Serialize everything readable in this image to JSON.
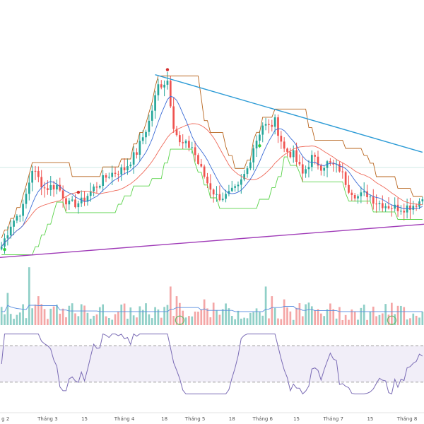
{
  "chart_data": {
    "type": "candlestick",
    "colors": {
      "up": "#26a69a",
      "down": "#ef5350",
      "vol_up": "#8fcfc7",
      "vol_down": "#f4a6a6",
      "ma_fast": "#3a6bd6",
      "ma_slow": "#ef6a5a",
      "trail_upper": "#b8651e",
      "trail_lower": "#5ad34a",
      "trend_upper": "#2c9bd6",
      "trend_lower": "#a03cb8",
      "rsi": "#7a6bb5",
      "rsi_band": "#f1eef8",
      "vol_ma": "#5b8fe0",
      "marker_circle": "#66bb6a"
    },
    "x_ticks": [
      {
        "i": 0,
        "label": "g 2"
      },
      {
        "i": 15,
        "label": "Tháng 3"
      },
      {
        "i": 27,
        "label": "15"
      },
      {
        "i": 40,
        "label": "Tháng 4"
      },
      {
        "i": 53,
        "label": "18"
      },
      {
        "i": 63,
        "label": "Tháng 5"
      },
      {
        "i": 75,
        "label": "18"
      },
      {
        "i": 85,
        "label": "Tháng 6"
      },
      {
        "i": 96,
        "label": "15"
      },
      {
        "i": 108,
        "label": "Tháng 7"
      },
      {
        "i": 120,
        "label": "15"
      },
      {
        "i": 132,
        "label": "Tháng 8"
      }
    ],
    "anchors": [
      [
        0,
        12
      ],
      [
        3,
        20
      ],
      [
        7,
        26
      ],
      [
        10,
        40
      ],
      [
        14,
        33
      ],
      [
        18,
        34
      ],
      [
        22,
        27
      ],
      [
        26,
        28
      ],
      [
        30,
        33
      ],
      [
        35,
        38
      ],
      [
        40,
        40
      ],
      [
        44,
        46
      ],
      [
        48,
        57
      ],
      [
        51,
        70
      ],
      [
        54,
        72
      ],
      [
        56,
        56
      ],
      [
        58,
        49
      ],
      [
        62,
        48
      ],
      [
        64,
        42
      ],
      [
        67,
        35
      ],
      [
        70,
        30
      ],
      [
        73,
        30
      ],
      [
        77,
        33
      ],
      [
        80,
        40
      ],
      [
        82,
        48
      ],
      [
        85,
        56
      ],
      [
        87,
        55
      ],
      [
        89,
        57
      ],
      [
        92,
        47
      ],
      [
        95,
        45
      ],
      [
        98,
        38
      ],
      [
        101,
        44
      ],
      [
        104,
        41
      ],
      [
        106,
        42
      ],
      [
        110,
        40
      ],
      [
        113,
        33
      ],
      [
        116,
        30
      ],
      [
        119,
        31
      ],
      [
        122,
        28
      ],
      [
        125,
        27
      ],
      [
        128,
        26
      ],
      [
        131,
        26
      ],
      [
        134,
        27
      ],
      [
        137,
        29
      ]
    ],
    "vol_spikes": [
      [
        2,
        1.0
      ],
      [
        9,
        1.8
      ],
      [
        12,
        0.9
      ],
      [
        22,
        0.6
      ],
      [
        55,
        1.2
      ],
      [
        57,
        0.9
      ],
      [
        66,
        0.8
      ],
      [
        86,
        1.2
      ],
      [
        88,
        0.9
      ],
      [
        92,
        0.8
      ],
      [
        100,
        0.7
      ]
    ],
    "trend_upper": {
      "i1": 50,
      "v1": 74,
      "i2": 137,
      "v2": 46
    },
    "trend_lower": {
      "i1": 0,
      "v1": 8,
      "i2": 137,
      "v2": 20
    },
    "price_range": [
      4,
      78
    ],
    "volume_max": 2.2,
    "rsi_range": [
      15,
      85
    ],
    "rsi_levels": [
      70,
      30
    ],
    "signals": [
      {
        "i": 1,
        "kind": "buy"
      },
      {
        "i": 25,
        "kind": "sell"
      },
      {
        "i": 54,
        "kind": "sell"
      },
      {
        "i": 84,
        "kind": "buy"
      }
    ],
    "volume_markers": [
      58,
      127
    ]
  }
}
